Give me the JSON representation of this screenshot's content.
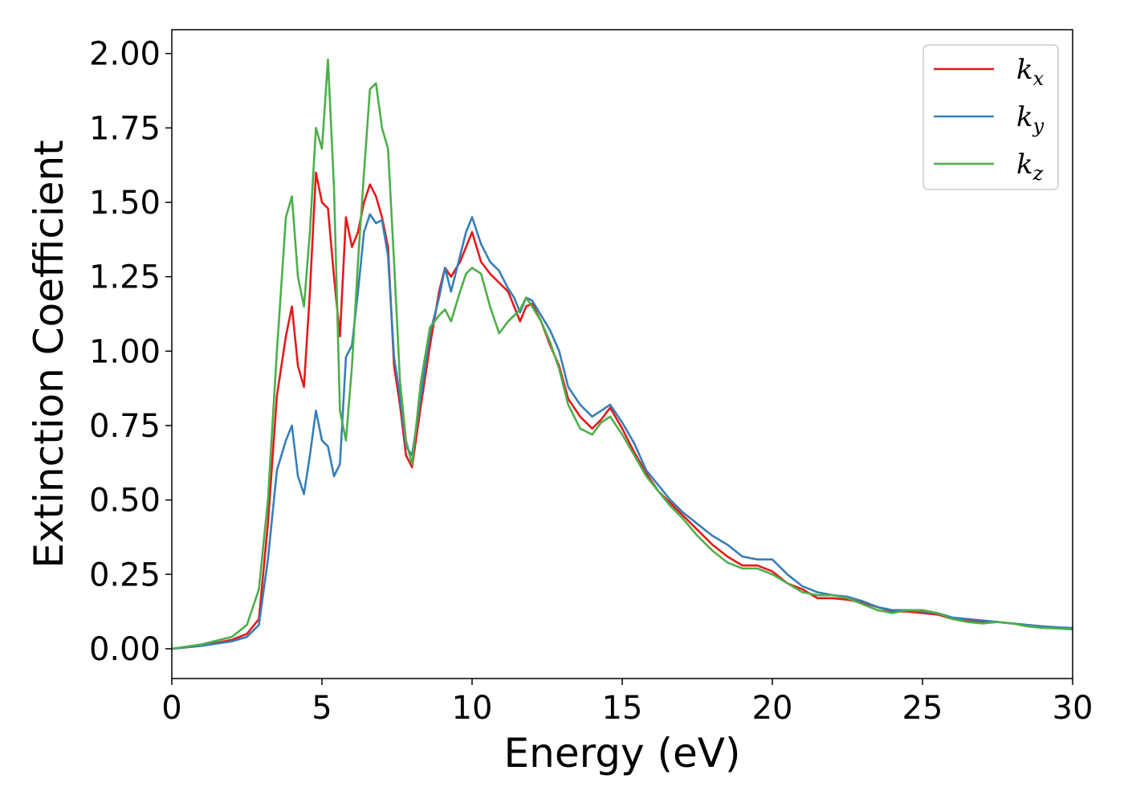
{
  "chart_data": {
    "type": "line",
    "title": "",
    "xlabel": "Energy (eV)",
    "ylabel": "Extinction Coefficient",
    "xlim": [
      0,
      30
    ],
    "ylim": [
      -0.1,
      2.08
    ],
    "xticks": [
      0,
      5,
      10,
      15,
      20,
      25,
      30
    ],
    "yticks": [
      0.0,
      0.25,
      0.5,
      0.75,
      1.0,
      1.25,
      1.5,
      1.75,
      2.0
    ],
    "xtick_labels": [
      "0",
      "5",
      "10",
      "15",
      "20",
      "25",
      "30"
    ],
    "ytick_labels": [
      "0.00",
      "0.25",
      "0.50",
      "0.75",
      "1.00",
      "1.25",
      "1.50",
      "1.75",
      "2.00"
    ],
    "grid": false,
    "legend_position": "top-right",
    "series": [
      {
        "name": "k_x",
        "legend_main": "k",
        "legend_sub": "x",
        "color": "#e41a1c",
        "x": [
          0,
          1,
          2,
          2.5,
          2.9,
          3.2,
          3.5,
          3.8,
          4.0,
          4.2,
          4.4,
          4.6,
          4.8,
          5.0,
          5.2,
          5.4,
          5.6,
          5.8,
          6.0,
          6.2,
          6.4,
          6.6,
          6.8,
          7.0,
          7.2,
          7.4,
          7.6,
          7.8,
          8.0,
          8.3,
          8.6,
          8.9,
          9.1,
          9.3,
          9.6,
          9.8,
          10.0,
          10.3,
          10.6,
          10.9,
          11.2,
          11.4,
          11.6,
          11.8,
          12.0,
          12.3,
          12.6,
          12.9,
          13.2,
          13.6,
          14.0,
          14.3,
          14.6,
          15.0,
          15.4,
          15.8,
          16.2,
          16.6,
          17.0,
          17.5,
          18.0,
          18.5,
          19.0,
          19.5,
          20.0,
          20.5,
          21.0,
          21.5,
          22.0,
          22.5,
          23.0,
          23.5,
          24.0,
          24.5,
          25.0,
          25.5,
          26.0,
          26.5,
          27.0,
          27.5,
          28.0,
          28.5,
          29.0,
          29.5,
          30.0
        ],
        "y": [
          0.0,
          0.01,
          0.03,
          0.05,
          0.1,
          0.42,
          0.85,
          1.05,
          1.15,
          0.95,
          0.88,
          1.2,
          1.6,
          1.5,
          1.48,
          1.25,
          1.05,
          1.45,
          1.35,
          1.4,
          1.5,
          1.56,
          1.52,
          1.45,
          1.35,
          0.95,
          0.82,
          0.65,
          0.61,
          0.82,
          1.02,
          1.2,
          1.28,
          1.25,
          1.3,
          1.35,
          1.4,
          1.3,
          1.26,
          1.23,
          1.2,
          1.15,
          1.1,
          1.15,
          1.16,
          1.1,
          1.02,
          0.95,
          0.84,
          0.78,
          0.74,
          0.77,
          0.81,
          0.74,
          0.66,
          0.59,
          0.53,
          0.49,
          0.45,
          0.4,
          0.35,
          0.31,
          0.28,
          0.28,
          0.26,
          0.22,
          0.2,
          0.17,
          0.17,
          0.165,
          0.155,
          0.14,
          0.125,
          0.125,
          0.12,
          0.115,
          0.1,
          0.095,
          0.09,
          0.09,
          0.085,
          0.08,
          0.075,
          0.07,
          0.068
        ]
      },
      {
        "name": "k_y",
        "legend_main": "k",
        "legend_sub": "y",
        "color": "#377eb8",
        "x": [
          0,
          1,
          2,
          2.5,
          2.9,
          3.2,
          3.5,
          3.8,
          4.0,
          4.2,
          4.4,
          4.6,
          4.8,
          5.0,
          5.2,
          5.4,
          5.6,
          5.8,
          6.0,
          6.2,
          6.4,
          6.6,
          6.8,
          7.0,
          7.2,
          7.4,
          7.6,
          7.8,
          8.0,
          8.3,
          8.6,
          8.9,
          9.1,
          9.3,
          9.6,
          9.8,
          10.0,
          10.3,
          10.6,
          10.9,
          11.2,
          11.4,
          11.6,
          11.8,
          12.0,
          12.3,
          12.6,
          12.9,
          13.2,
          13.6,
          14.0,
          14.3,
          14.6,
          15.0,
          15.4,
          15.8,
          16.2,
          16.6,
          17.0,
          17.5,
          18.0,
          18.5,
          19.0,
          19.5,
          20.0,
          20.5,
          21.0,
          21.5,
          22.0,
          22.5,
          23.0,
          23.5,
          24.0,
          24.5,
          25.0,
          25.5,
          26.0,
          26.5,
          27.0,
          27.5,
          28.0,
          28.5,
          29.0,
          29.5,
          30.0
        ],
        "y": [
          0.0,
          0.01,
          0.025,
          0.04,
          0.08,
          0.3,
          0.6,
          0.7,
          0.75,
          0.58,
          0.52,
          0.65,
          0.8,
          0.7,
          0.68,
          0.58,
          0.62,
          0.98,
          1.02,
          1.2,
          1.4,
          1.46,
          1.43,
          1.44,
          1.32,
          0.98,
          0.85,
          0.68,
          0.65,
          0.85,
          1.06,
          1.18,
          1.28,
          1.2,
          1.32,
          1.4,
          1.45,
          1.36,
          1.3,
          1.27,
          1.21,
          1.18,
          1.13,
          1.18,
          1.17,
          1.12,
          1.07,
          1.0,
          0.88,
          0.82,
          0.78,
          0.8,
          0.82,
          0.76,
          0.69,
          0.6,
          0.55,
          0.5,
          0.46,
          0.42,
          0.38,
          0.35,
          0.31,
          0.3,
          0.3,
          0.25,
          0.21,
          0.19,
          0.18,
          0.175,
          0.16,
          0.14,
          0.13,
          0.13,
          0.125,
          0.12,
          0.105,
          0.1,
          0.095,
          0.09,
          0.085,
          0.08,
          0.075,
          0.072,
          0.07
        ]
      },
      {
        "name": "k_z",
        "legend_main": "k",
        "legend_sub": "z",
        "color": "#4daf4a",
        "x": [
          0,
          1,
          2,
          2.5,
          2.9,
          3.2,
          3.5,
          3.8,
          4.0,
          4.2,
          4.4,
          4.6,
          4.8,
          5.0,
          5.2,
          5.4,
          5.6,
          5.8,
          6.0,
          6.2,
          6.4,
          6.6,
          6.8,
          7.0,
          7.2,
          7.4,
          7.6,
          7.8,
          8.0,
          8.3,
          8.6,
          8.9,
          9.1,
          9.3,
          9.6,
          9.8,
          10.0,
          10.3,
          10.6,
          10.9,
          11.2,
          11.4,
          11.6,
          11.8,
          12.0,
          12.3,
          12.6,
          12.9,
          13.2,
          13.6,
          14.0,
          14.3,
          14.6,
          15.0,
          15.4,
          15.8,
          16.2,
          16.6,
          17.0,
          17.5,
          18.0,
          18.5,
          19.0,
          19.5,
          20.0,
          20.5,
          21.0,
          21.5,
          22.0,
          22.5,
          23.0,
          23.5,
          24.0,
          24.5,
          25.0,
          25.5,
          26.0,
          26.5,
          27.0,
          27.5,
          28.0,
          28.5,
          29.0,
          29.5,
          30.0
        ],
        "y": [
          0.0,
          0.015,
          0.04,
          0.08,
          0.2,
          0.5,
          1.0,
          1.45,
          1.52,
          1.25,
          1.15,
          1.4,
          1.75,
          1.68,
          1.98,
          1.55,
          0.8,
          0.7,
          0.95,
          1.3,
          1.6,
          1.88,
          1.9,
          1.75,
          1.68,
          1.3,
          0.9,
          0.7,
          0.62,
          0.9,
          1.08,
          1.12,
          1.14,
          1.1,
          1.2,
          1.26,
          1.28,
          1.26,
          1.15,
          1.06,
          1.1,
          1.12,
          1.14,
          1.18,
          1.15,
          1.1,
          1.03,
          0.94,
          0.82,
          0.74,
          0.72,
          0.76,
          0.78,
          0.72,
          0.65,
          0.58,
          0.53,
          0.48,
          0.44,
          0.38,
          0.33,
          0.29,
          0.27,
          0.27,
          0.25,
          0.22,
          0.19,
          0.18,
          0.18,
          0.17,
          0.15,
          0.13,
          0.12,
          0.13,
          0.13,
          0.12,
          0.1,
          0.09,
          0.085,
          0.09,
          0.085,
          0.075,
          0.07,
          0.068,
          0.065
        ]
      }
    ]
  }
}
